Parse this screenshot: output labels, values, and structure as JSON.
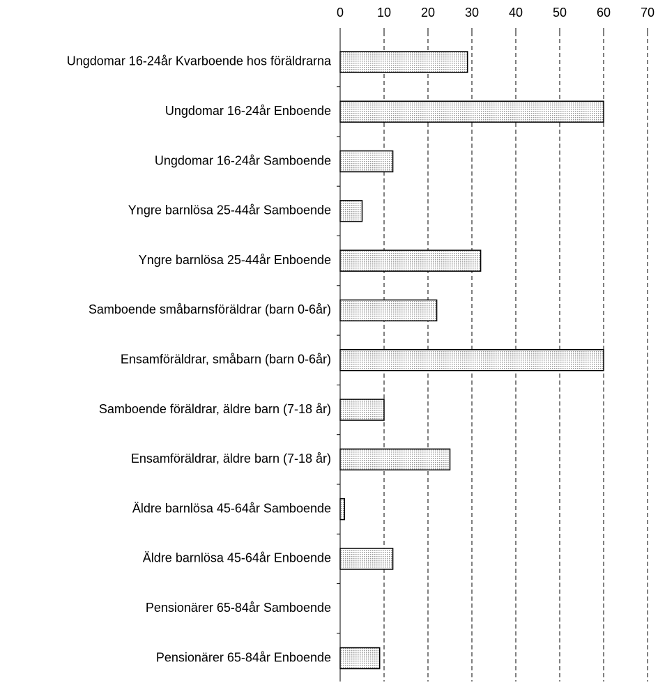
{
  "chart_data": {
    "type": "barh",
    "categories": [
      "Ungdomar 16-24år Kvarboende hos föräldrarna",
      "Ungdomar 16-24år Enboende",
      "Ungdomar 16-24år Samboende",
      "Yngre barnlösa 25-44år Samboende",
      "Yngre barnlösa 25-44år Enboende",
      "Samboende småbarnsföräldrar (barn 0-6år)",
      "Ensamföräldrar, småbarn (barn 0-6år)",
      "Samboende föräldrar, äldre barn (7-18 år)",
      "Ensamföräldrar, äldre barn (7-18 år)",
      "Äldre barnlösa 45-64år Samboende",
      "Äldre barnlösa 45-64år Enboende",
      "Pensionärer 65-84år Samboende",
      "Pensionärer 65-84år Enboende"
    ],
    "values": [
      29,
      60,
      12,
      5,
      32,
      22,
      60,
      10,
      25,
      1,
      12,
      0,
      9
    ],
    "color": "#9a9a9a",
    "xlim": [
      0,
      70
    ],
    "xticks": [
      0,
      10,
      20,
      30,
      40,
      50,
      60,
      70
    ],
    "grid": true
  }
}
